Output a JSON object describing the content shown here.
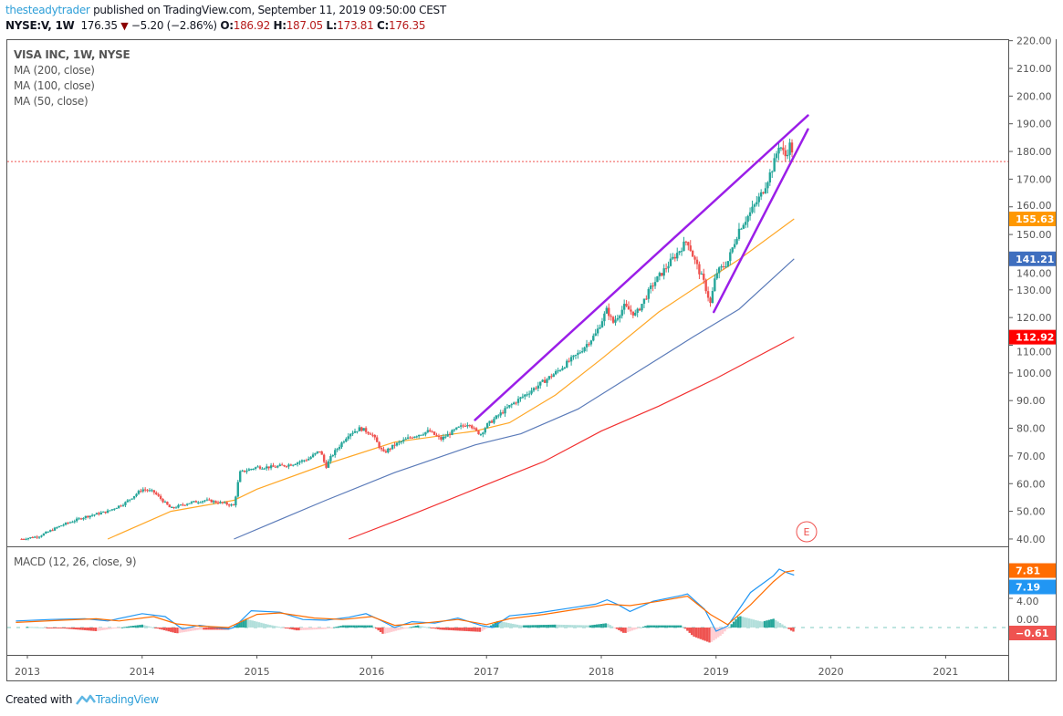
{
  "header": {
    "author": "thesteadytrader",
    "published_text": "published on TradingView.com, September 11, 2019 09:50:00 CEST",
    "symbol": "NYSE:V, 1W",
    "last_price": "176.35",
    "change_arrow": "▼",
    "change": "−5.20 (−2.86%)",
    "open_label": "O:",
    "open": "186.92",
    "high_label": "H:",
    "high": "187.05",
    "low_label": "L:",
    "low": "173.81",
    "close_label": "C:",
    "close": "176.35"
  },
  "legend": {
    "title": "VISA INC, 1W, NYSE",
    "indicators": [
      "MA (200, close)",
      "MA (100, close)",
      "MA (50, close)"
    ]
  },
  "macd_title": "MACD (12, 26, close, 9)",
  "earnings_marker": "E",
  "footer": {
    "created_with": "Created with",
    "brand": "TradingView"
  },
  "colors": {
    "up": "#26a69a",
    "down": "#ef5350",
    "ma50": "#ffa726",
    "ma100": "#5b7bb9",
    "ma200": "#f23030",
    "channel": "#9b1ee8",
    "macd": "#2196f3",
    "signal": "#ff6d00",
    "price_line": "#ef5350",
    "author": "#2e9fd8"
  },
  "chart_data": [
    {
      "type": "candlestick",
      "title": "VISA INC, 1W, NYSE",
      "x_ticks": [
        "2013",
        "2014",
        "2015",
        "2016",
        "2017",
        "2018",
        "2019",
        "2020",
        "2021"
      ],
      "y_ticks": [
        "40.00",
        "50.00",
        "60.00",
        "70.00",
        "80.00",
        "90.00",
        "100.00",
        "110.00",
        "120.00",
        "130.00",
        "140.00",
        "150.00",
        "160.00",
        "170.00",
        "180.00",
        "190.00",
        "200.00",
        "210.00",
        "220.00"
      ],
      "ylim": [
        40,
        220
      ],
      "xlim": [
        2012.9,
        2021.5
      ],
      "last_price": 176.35,
      "price_path": [
        [
          2012.95,
          40
        ],
        [
          2013.1,
          41
        ],
        [
          2013.3,
          45
        ],
        [
          2013.5,
          48
        ],
        [
          2013.7,
          50
        ],
        [
          2013.85,
          53
        ],
        [
          2014.0,
          58
        ],
        [
          2014.1,
          57
        ],
        [
          2014.25,
          51
        ],
        [
          2014.4,
          53
        ],
        [
          2014.55,
          54
        ],
        [
          2014.7,
          53
        ],
        [
          2014.8,
          52
        ],
        [
          2014.85,
          64
        ],
        [
          2015.0,
          66
        ],
        [
          2015.15,
          66
        ],
        [
          2015.3,
          67
        ],
        [
          2015.45,
          69
        ],
        [
          2015.55,
          72
        ],
        [
          2015.6,
          66
        ],
        [
          2015.65,
          70
        ],
        [
          2015.8,
          78
        ],
        [
          2015.9,
          80
        ],
        [
          2016.0,
          78
        ],
        [
          2016.1,
          71
        ],
        [
          2016.2,
          74
        ],
        [
          2016.35,
          77
        ],
        [
          2016.5,
          79
        ],
        [
          2016.6,
          76
        ],
        [
          2016.75,
          80
        ],
        [
          2016.85,
          82
        ],
        [
          2016.9,
          79
        ],
        [
          2016.95,
          78
        ],
        [
          2017.0,
          81
        ],
        [
          2017.2,
          88
        ],
        [
          2017.4,
          94
        ],
        [
          2017.6,
          100
        ],
        [
          2017.8,
          107
        ],
        [
          2017.95,
          114
        ],
        [
          2018.05,
          123
        ],
        [
          2018.1,
          118
        ],
        [
          2018.2,
          124
        ],
        [
          2018.3,
          121
        ],
        [
          2018.45,
          132
        ],
        [
          2018.6,
          140
        ],
        [
          2018.75,
          148
        ],
        [
          2018.8,
          142
        ],
        [
          2018.9,
          132
        ],
        [
          2018.95,
          125
        ],
        [
          2019.0,
          136
        ],
        [
          2019.1,
          140
        ],
        [
          2019.2,
          152
        ],
        [
          2019.3,
          158
        ],
        [
          2019.4,
          165
        ],
        [
          2019.5,
          175
        ],
        [
          2019.55,
          183
        ],
        [
          2019.6,
          178
        ],
        [
          2019.65,
          183
        ],
        [
          2019.68,
          176.35
        ]
      ],
      "series": [
        {
          "name": "MA (50, close)",
          "value_label": "155.63",
          "last": 155.63,
          "points": [
            [
              2013.7,
              40
            ],
            [
              2014.25,
              50
            ],
            [
              2014.8,
              54
            ],
            [
              2015.0,
              58
            ],
            [
              2015.6,
              67
            ],
            [
              2016.2,
              75
            ],
            [
              2016.9,
              79
            ],
            [
              2017.2,
              82
            ],
            [
              2017.6,
              92
            ],
            [
              2018.0,
              105
            ],
            [
              2018.5,
              122
            ],
            [
              2018.9,
              133
            ],
            [
              2019.2,
              141
            ],
            [
              2019.68,
              155.63
            ]
          ]
        },
        {
          "name": "MA (100, close)",
          "value_label": "141.21",
          "last": 141.21,
          "points": [
            [
              2014.8,
              40
            ],
            [
              2015.2,
              47
            ],
            [
              2015.6,
              54
            ],
            [
              2016.2,
              64
            ],
            [
              2016.9,
              74
            ],
            [
              2017.3,
              78
            ],
            [
              2017.8,
              87
            ],
            [
              2018.3,
              100
            ],
            [
              2018.8,
              113
            ],
            [
              2019.2,
              123
            ],
            [
              2019.68,
              141.21
            ]
          ]
        },
        {
          "name": "MA (200, close)",
          "value_label": "112.92",
          "last": 112.92,
          "points": [
            [
              2015.8,
              40
            ],
            [
              2016.3,
              48
            ],
            [
              2016.9,
              58
            ],
            [
              2017.5,
              68
            ],
            [
              2018.0,
              79
            ],
            [
              2018.5,
              88
            ],
            [
              2019.0,
              98
            ],
            [
              2019.68,
              112.92
            ]
          ]
        }
      ],
      "trendlines": [
        {
          "name": "upper-channel",
          "points": [
            [
              2016.9,
              83
            ],
            [
              2019.8,
              193
            ]
          ]
        },
        {
          "name": "lower-channel",
          "points": [
            [
              2018.98,
              122
            ],
            [
              2019.8,
              188
            ]
          ]
        }
      ],
      "earnings_event": {
        "x": 2019.75,
        "label": "E"
      }
    },
    {
      "type": "line",
      "title": "MACD (12, 26, close, 9)",
      "y_ticks": [
        "4.00",
        "0.00"
      ],
      "ylim": [
        -3.5,
        11
      ],
      "badges": [
        {
          "name": "signal",
          "value_label": "7.81",
          "value": 7.81
        },
        {
          "name": "macd",
          "value_label": "7.19",
          "value": 7.19
        },
        {
          "name": "histogram",
          "value_label": "−0.61",
          "value": -0.61
        }
      ],
      "series": [
        {
          "name": "MACD",
          "points": [
            [
              2012.9,
              0.9
            ],
            [
              2013.2,
              1.1
            ],
            [
              2013.5,
              1.2
            ],
            [
              2013.7,
              0.9
            ],
            [
              2014.0,
              1.9
            ],
            [
              2014.2,
              1.5
            ],
            [
              2014.35,
              -0.2
            ],
            [
              2014.5,
              0.3
            ],
            [
              2014.75,
              -0.2
            ],
            [
              2014.8,
              0.0
            ],
            [
              2014.95,
              2.3
            ],
            [
              2015.2,
              2.1
            ],
            [
              2015.4,
              1.1
            ],
            [
              2015.6,
              1.0
            ],
            [
              2015.8,
              1.4
            ],
            [
              2015.95,
              1.9
            ],
            [
              2016.05,
              1.2
            ],
            [
              2016.2,
              0.0
            ],
            [
              2016.35,
              0.8
            ],
            [
              2016.55,
              0.6
            ],
            [
              2016.75,
              1.3
            ],
            [
              2016.95,
              0.3
            ],
            [
              2017.05,
              0.0
            ],
            [
              2017.2,
              1.6
            ],
            [
              2017.45,
              2.0
            ],
            [
              2017.7,
              2.6
            ],
            [
              2017.95,
              3.2
            ],
            [
              2018.05,
              3.8
            ],
            [
              2018.15,
              3.1
            ],
            [
              2018.25,
              2.2
            ],
            [
              2018.45,
              3.6
            ],
            [
              2018.7,
              4.4
            ],
            [
              2018.75,
              4.6
            ],
            [
              2018.9,
              2.5
            ],
            [
              2019.0,
              -0.5
            ],
            [
              2019.1,
              0.2
            ],
            [
              2019.3,
              4.8
            ],
            [
              2019.5,
              7.1
            ],
            [
              2019.55,
              8.0
            ],
            [
              2019.62,
              7.5
            ],
            [
              2019.68,
              7.19
            ]
          ]
        },
        {
          "name": "Signal",
          "points": [
            [
              2012.9,
              0.7
            ],
            [
              2013.3,
              1.0
            ],
            [
              2013.6,
              1.2
            ],
            [
              2013.8,
              0.9
            ],
            [
              2014.1,
              1.5
            ],
            [
              2014.3,
              0.5
            ],
            [
              2014.5,
              0.2
            ],
            [
              2014.75,
              0.0
            ],
            [
              2015.0,
              1.8
            ],
            [
              2015.2,
              2.0
            ],
            [
              2015.5,
              1.3
            ],
            [
              2015.75,
              1.1
            ],
            [
              2016.0,
              1.5
            ],
            [
              2016.2,
              0.3
            ],
            [
              2016.45,
              0.6
            ],
            [
              2016.75,
              1.1
            ],
            [
              2017.0,
              0.4
            ],
            [
              2017.2,
              1.2
            ],
            [
              2017.5,
              1.8
            ],
            [
              2017.95,
              2.9
            ],
            [
              2018.05,
              3.2
            ],
            [
              2018.25,
              3.0
            ],
            [
              2018.5,
              3.6
            ],
            [
              2018.75,
              4.3
            ],
            [
              2018.95,
              1.8
            ],
            [
              2019.1,
              0.4
            ],
            [
              2019.3,
              3.1
            ],
            [
              2019.5,
              6.3
            ],
            [
              2019.6,
              7.6
            ],
            [
              2019.68,
              7.81
            ]
          ]
        },
        {
          "name": "Histogram",
          "points": [
            [
              2013.0,
              0.1
            ],
            [
              2013.3,
              -0.1
            ],
            [
              2013.6,
              -0.5
            ],
            [
              2013.9,
              0.2
            ],
            [
              2014.0,
              0.4
            ],
            [
              2014.3,
              -0.8
            ],
            [
              2014.5,
              -0.3
            ],
            [
              2014.75,
              -0.3
            ],
            [
              2014.9,
              1.2
            ],
            [
              2015.1,
              0.4
            ],
            [
              2015.35,
              -0.4
            ],
            [
              2015.6,
              -0.2
            ],
            [
              2015.75,
              0.3
            ],
            [
              2016.0,
              0.3
            ],
            [
              2016.1,
              -0.9
            ],
            [
              2016.25,
              -0.3
            ],
            [
              2016.4,
              0.3
            ],
            [
              2016.6,
              -0.3
            ],
            [
              2016.95,
              -0.6
            ],
            [
              2017.1,
              0.9
            ],
            [
              2017.3,
              0.3
            ],
            [
              2017.6,
              0.4
            ],
            [
              2017.9,
              0.3
            ],
            [
              2018.05,
              0.6
            ],
            [
              2018.2,
              -0.8
            ],
            [
              2018.4,
              0.3
            ],
            [
              2018.7,
              0.3
            ],
            [
              2018.8,
              -1.2
            ],
            [
              2018.95,
              -2.1
            ],
            [
              2019.05,
              -1.0
            ],
            [
              2019.2,
              1.6
            ],
            [
              2019.4,
              0.8
            ],
            [
              2019.5,
              1.2
            ],
            [
              2019.6,
              0.2
            ],
            [
              2019.65,
              -0.4
            ],
            [
              2019.68,
              -0.61
            ]
          ]
        }
      ]
    }
  ]
}
